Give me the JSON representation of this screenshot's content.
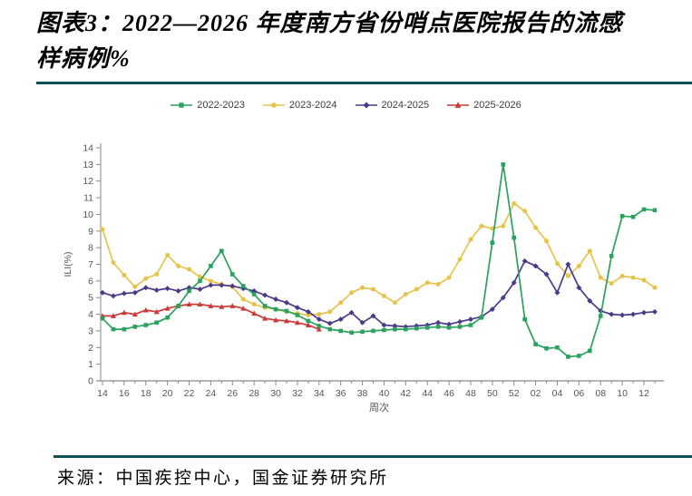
{
  "title": {
    "line1": "图表3：2022—2026 年度南方省份哨点医院报告的流感",
    "line2": "样病例%"
  },
  "rule_color": "#0e5159",
  "source_text": "来源：中国疾控中心，国金证券研究所",
  "chart_data": {
    "type": "line",
    "title": "",
    "xlabel": "周次",
    "ylabel": "ILI(%)",
    "ylim": [
      0,
      14
    ],
    "y_ticks": [
      0,
      1,
      2,
      3,
      4,
      5,
      6,
      7,
      8,
      9,
      10,
      11,
      12,
      13,
      14
    ],
    "grid": false,
    "legend_position": "top-center",
    "x_weeks": [
      "14",
      "15",
      "16",
      "17",
      "18",
      "19",
      "20",
      "21",
      "22",
      "23",
      "24",
      "25",
      "26",
      "27",
      "28",
      "29",
      "30",
      "31",
      "32",
      "33",
      "34",
      "35",
      "36",
      "37",
      "38",
      "39",
      "40",
      "41",
      "42",
      "43",
      "44",
      "45",
      "46",
      "47",
      "48",
      "49",
      "50",
      "51",
      "52",
      "01",
      "02",
      "03",
      "04",
      "05",
      "06",
      "07",
      "08",
      "09",
      "10",
      "11",
      "12",
      "13"
    ],
    "series": [
      {
        "name": "2023-2024",
        "color": "#e6c44c",
        "marker": "circle",
        "values": [
          9.1,
          7.1,
          6.35,
          5.65,
          6.15,
          6.4,
          7.55,
          6.9,
          6.7,
          6.25,
          6.0,
          5.8,
          5.65,
          4.9,
          4.6,
          4.4,
          4.3,
          4.15,
          4.05,
          3.95,
          4.0,
          4.15,
          4.7,
          5.3,
          5.6,
          5.5,
          5.1,
          4.7,
          5.2,
          5.5,
          5.9,
          5.8,
          6.2,
          7.3,
          8.5,
          9.3,
          9.15,
          9.3,
          10.65,
          10.2,
          9.2,
          8.4,
          7.05,
          6.3,
          6.9,
          7.8,
          6.2,
          5.85,
          6.3,
          6.2,
          6.05,
          5.6
        ]
      },
      {
        "name": "2024-2025",
        "color": "#4b3a8a",
        "marker": "diamond",
        "values": [
          5.3,
          5.1,
          5.25,
          5.3,
          5.6,
          5.45,
          5.55,
          5.4,
          5.6,
          5.5,
          5.75,
          5.75,
          5.7,
          5.55,
          5.4,
          5.15,
          4.9,
          4.7,
          4.4,
          4.15,
          3.7,
          3.45,
          3.7,
          4.1,
          3.5,
          3.9,
          3.35,
          3.3,
          3.25,
          3.3,
          3.35,
          3.5,
          3.4,
          3.55,
          3.7,
          3.85,
          4.3,
          5.0,
          5.9,
          7.2,
          6.9,
          6.4,
          5.3,
          7.0,
          5.6,
          4.8,
          4.2,
          4.0,
          3.95,
          4.0,
          4.1,
          4.15
        ]
      },
      {
        "name": "2025-2026",
        "color": "#c93a38",
        "marker": "triangle",
        "values": [
          3.9,
          3.9,
          4.1,
          4.0,
          4.25,
          4.15,
          4.35,
          4.5,
          4.6,
          4.6,
          4.5,
          4.45,
          4.5,
          4.35,
          4.05,
          3.75,
          3.65,
          3.6,
          3.5,
          3.35,
          3.1,
          null,
          null,
          null,
          null,
          null,
          null,
          null,
          null,
          null,
          null,
          null,
          null,
          null,
          null,
          null,
          null,
          null,
          null,
          null,
          null,
          null,
          null,
          null,
          null,
          null,
          null,
          null,
          null,
          null,
          null,
          null
        ]
      },
      {
        "name": "2022-2023",
        "color": "#2aa15d",
        "marker": "square",
        "values": [
          3.75,
          3.1,
          3.1,
          3.25,
          3.35,
          3.5,
          3.8,
          4.5,
          5.4,
          6.0,
          6.9,
          7.8,
          6.4,
          5.7,
          5.2,
          4.5,
          4.3,
          4.2,
          3.95,
          3.6,
          3.3,
          3.1,
          3.0,
          2.9,
          2.95,
          3.0,
          3.05,
          3.1,
          3.1,
          3.15,
          3.2,
          3.25,
          3.2,
          3.25,
          3.35,
          3.8,
          8.3,
          13.0,
          8.6,
          3.7,
          2.2,
          1.95,
          2.0,
          1.45,
          1.5,
          1.8,
          3.9,
          7.5,
          9.9,
          9.85,
          10.3,
          10.25
        ]
      }
    ],
    "legend_order": [
      "2022-2023",
      "2023-2024",
      "2024-2025",
      "2025-2026"
    ]
  }
}
